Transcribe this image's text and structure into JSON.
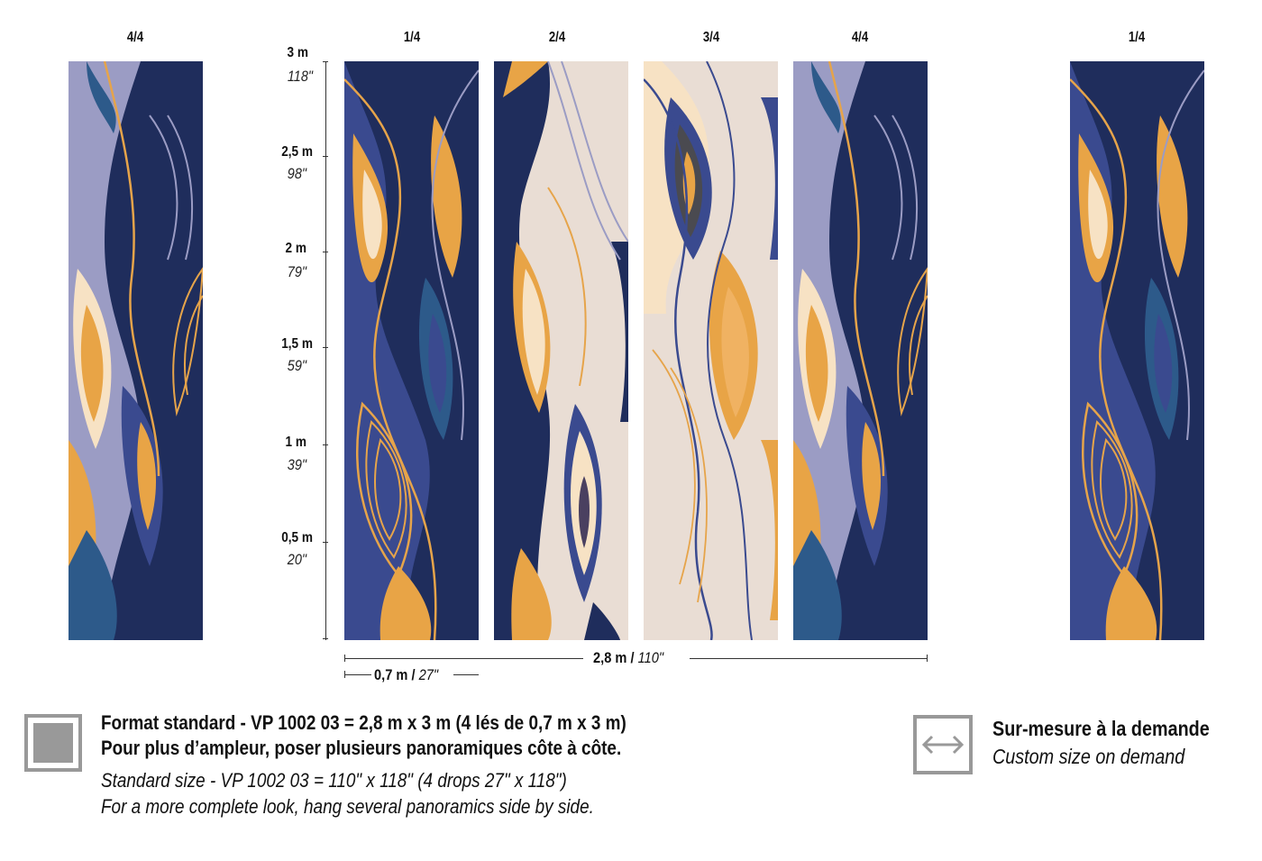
{
  "panel_labels": {
    "left_4_4": "4/4",
    "p1": "1/4",
    "p2": "2/4",
    "p3": "3/4",
    "p4": "4/4",
    "right_1_4": "1/4"
  },
  "height_scale": [
    {
      "m": "3 m",
      "in": "118\""
    },
    {
      "m": "2,5 m",
      "in": "98\""
    },
    {
      "m": "2 m",
      "in": "79\""
    },
    {
      "m": "1,5 m",
      "in": "59\""
    },
    {
      "m": "1 m",
      "in": "39\""
    },
    {
      "m": "0,5 m",
      "in": "20\""
    }
  ],
  "width_total": {
    "metric": "2,8 m /",
    "imperial": "110\""
  },
  "width_drop": {
    "metric": "0,7 m /",
    "imperial": "27\""
  },
  "footer": {
    "standard_fr_line1": "Format standard - VP 1002 03 = 2,8 m x 3 m (4 lés de 0,7 m x 3 m)",
    "standard_fr_line2": "Pour plus d’ampleur, poser plusieurs panoramiques côte à côte.",
    "standard_en_line1": "Standard size - VP 1002 03 = 110\" x 118\" (4 drops 27\" x 118\")",
    "standard_en_line2": "For a more complete look, hang several panoramics side by side.",
    "custom_fr": "Sur-mesure à la demande",
    "custom_en": "Custom size on demand"
  },
  "colors": {
    "navy": "#1f2d5c",
    "royal": "#3a4a8f",
    "teal": "#2d5a8a",
    "lavender": "#9b9cc4",
    "orange": "#e8a446",
    "cream": "#f7e2c4",
    "beige": "#e9ddd4",
    "gold_line": "#e6a44a"
  }
}
